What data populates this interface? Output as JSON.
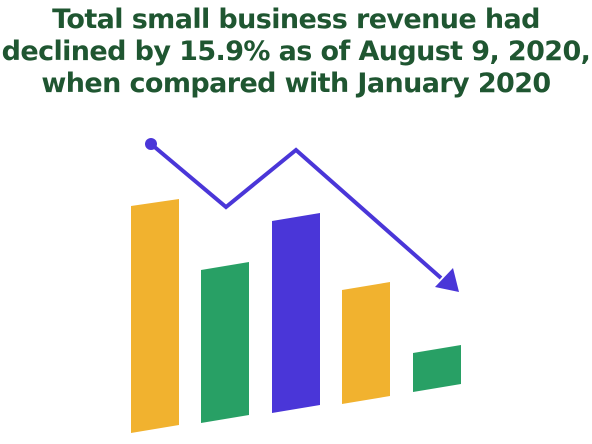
{
  "headline": "Total small business revenue had declined by 15.9% as of August 9, 2020, when compared with January 2020",
  "colors": {
    "headline_text": "#1f5631",
    "bar_yellow": "#f1b22f",
    "bar_green": "#28a065",
    "bar_purple": "#4a36d8",
    "arrow": "#4a36d8",
    "background": "#ffffff"
  },
  "illustration": {
    "bars": [
      {
        "name": "bar-1",
        "color": "bar_yellow",
        "level": 1.0
      },
      {
        "name": "bar-2",
        "color": "bar_green",
        "level": 0.7
      },
      {
        "name": "bar-3",
        "color": "bar_purple",
        "level": 0.9
      },
      {
        "name": "bar-4",
        "color": "bar_yellow",
        "level": 0.55
      },
      {
        "name": "bar-5",
        "color": "bar_green",
        "level": 0.2
      }
    ],
    "trend_icon": "downward-zigzag-arrow-icon"
  }
}
